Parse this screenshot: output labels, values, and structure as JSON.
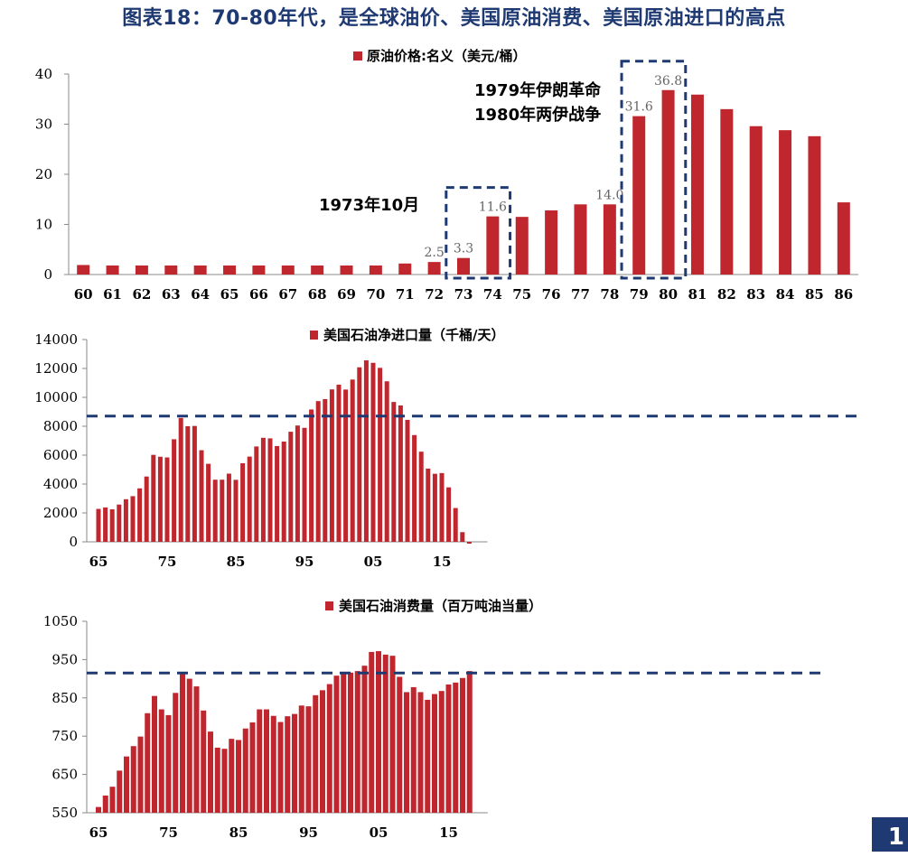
{
  "title": "图表18：70-80年代，是全球油价、美国原油消费、美国原油进口的高点",
  "page_number": "1",
  "colors": {
    "bar": "#c0262d",
    "title": "#1f3a73",
    "reference_line": "#1f3a73"
  },
  "chart_data": [
    {
      "id": "price",
      "type": "bar",
      "legend": "原油价格:名义（美元/桶）",
      "x": [
        "60",
        "61",
        "62",
        "63",
        "64",
        "65",
        "66",
        "67",
        "68",
        "69",
        "70",
        "71",
        "72",
        "73",
        "74",
        "75",
        "76",
        "77",
        "78",
        "79",
        "80",
        "81",
        "82",
        "83",
        "84",
        "85",
        "86"
      ],
      "values": [
        1.9,
        1.8,
        1.8,
        1.8,
        1.8,
        1.8,
        1.8,
        1.8,
        1.8,
        1.8,
        1.8,
        2.2,
        2.5,
        3.3,
        11.6,
        11.5,
        12.8,
        14.0,
        14.0,
        31.6,
        36.8,
        35.9,
        33.0,
        29.6,
        28.8,
        27.6,
        14.4
      ],
      "ylim": [
        0,
        40
      ],
      "yticks": [
        "0",
        "10",
        "20",
        "30",
        "40"
      ],
      "data_labels": [
        {
          "index": 12,
          "text": "2.5"
        },
        {
          "index": 13,
          "text": "3.3"
        },
        {
          "index": 14,
          "text": "11.6"
        },
        {
          "index": 18,
          "text": "14.0"
        },
        {
          "index": 19,
          "text": "31.6"
        },
        {
          "index": 20,
          "text": "36.8"
        }
      ],
      "annotations": [
        "1973年10月",
        "1979年伊朗革命",
        "1980年两伊战争"
      ],
      "highlight_ranges": [
        [
          13,
          14
        ],
        [
          19,
          20
        ]
      ]
    },
    {
      "id": "imports",
      "type": "bar",
      "legend": "美国石油净进口量（千桶/天）",
      "x_start_year": 1965,
      "values": [
        2280,
        2380,
        2250,
        2580,
        2950,
        3160,
        3700,
        4520,
        6020,
        5890,
        5840,
        7100,
        8570,
        8000,
        8020,
        6340,
        5400,
        4300,
        4300,
        4720,
        4290,
        5440,
        5900,
        6600,
        7200,
        7160,
        6630,
        6940,
        7620,
        8050,
        7890,
        9160,
        9740,
        9880,
        10550,
        10880,
        10540,
        11230,
        12080,
        12560,
        12390,
        12040,
        11110,
        9680,
        9440,
        8440,
        7390,
        6240,
        5070,
        4710,
        4760,
        3770,
        2340,
        670,
        -100
      ],
      "ylim": [
        0,
        14000
      ],
      "yticks": [
        "0",
        "2000",
        "4000",
        "6000",
        "8000",
        "10000",
        "12000",
        "14000"
      ],
      "xticks": [
        {
          "index": 0,
          "text": "65"
        },
        {
          "index": 10,
          "text": "75"
        },
        {
          "index": 20,
          "text": "85"
        },
        {
          "index": 30,
          "text": "95"
        },
        {
          "index": 40,
          "text": "05"
        },
        {
          "index": 50,
          "text": "15"
        }
      ],
      "reference_line": 8700
    },
    {
      "id": "consumption",
      "type": "bar",
      "legend": "美国石油消费量（百万吨油当量）",
      "x_start_year": 1965,
      "values": [
        565,
        595,
        618,
        660,
        697,
        724,
        749,
        810,
        855,
        820,
        805,
        863,
        912,
        900,
        880,
        817,
        762,
        720,
        717,
        743,
        740,
        770,
        786,
        820,
        820,
        803,
        787,
        802,
        808,
        830,
        828,
        857,
        870,
        886,
        908,
        918,
        916,
        920,
        934,
        970,
        972,
        963,
        960,
        905,
        865,
        878,
        865,
        845,
        860,
        868,
        885,
        890,
        902,
        920
      ],
      "ylim": [
        550,
        1050
      ],
      "yticks": [
        "550",
        "650",
        "750",
        "850",
        "950",
        "1050"
      ],
      "xticks": [
        {
          "index": 0,
          "text": "65"
        },
        {
          "index": 10,
          "text": "75"
        },
        {
          "index": 20,
          "text": "85"
        },
        {
          "index": 30,
          "text": "95"
        },
        {
          "index": 40,
          "text": "05"
        },
        {
          "index": 50,
          "text": "15"
        }
      ],
      "reference_line": 915
    }
  ]
}
